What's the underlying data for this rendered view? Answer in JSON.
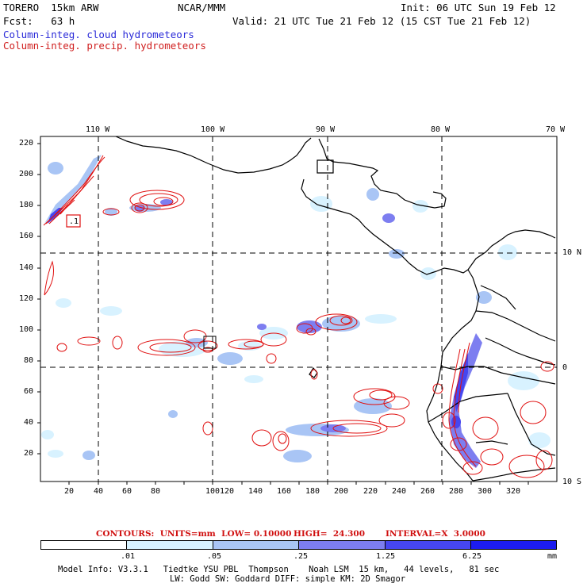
{
  "header": {
    "model_name": "TORERO  15km ARW",
    "institution": "NCAR/MMM",
    "init_time": "Init: 06 UTC Sun 19 Feb 12",
    "forecast": "Fcst:   63 h",
    "valid_time": "Valid: 21 UTC Tue 21 Feb 12 (15 CST Tue 21 Feb 12)",
    "field_cloud": "Column-integ. cloud hydrometeors",
    "field_precip": "Column-integ. precip. hydrometeors"
  },
  "map": {
    "lon_labels": [
      "110 W",
      "100 W",
      "90 W",
      "80 W",
      "70 W"
    ],
    "lat_labels": [
      "10 N",
      "0",
      "10 S"
    ],
    "x_ticks": [
      "20",
      "40",
      "60",
      "80",
      "100",
      "120",
      "140",
      "160",
      "180",
      "200",
      "220",
      "240",
      "260",
      "280",
      "300",
      "320"
    ],
    "y_ticks": [
      "220",
      "200",
      "180",
      "160",
      "140",
      "120",
      "100",
      "80",
      "60",
      "40",
      "20"
    ],
    "box_labels": [
      ".1"
    ],
    "colors": {
      "cloud_light": "#d8f2ff",
      "cloud_mid": "#a9c5f5",
      "cloud_strong": "#7d7ef0",
      "cloud_deep": "#4646f0",
      "precip_contour": "#e01010",
      "coast": "#000000"
    }
  },
  "contour_info": {
    "label": "CONTOURS:  UNITS=mm  LOW= 0.10000",
    "high": "HIGH=  24.300",
    "interval": "INTERVAL=X  3.0000"
  },
  "colorbar": {
    "labels": [
      ".01",
      ".05",
      ".25",
      "1.25",
      "6.25"
    ],
    "units": "mm",
    "colors": [
      "#ffffff",
      "#d8f2ff",
      "#a9c5f5",
      "#7d7ef0",
      "#4646f0",
      "#1c1cf0"
    ]
  },
  "footer": {
    "line1": "Model Info: V3.3.1   Tiedtke YSU PBL  Thompson    Noah LSM  15 km,   44 levels,   81 sec",
    "line2": "LW: Godd SW: Goddard DIFF: simple KM: 2D Smagor"
  }
}
